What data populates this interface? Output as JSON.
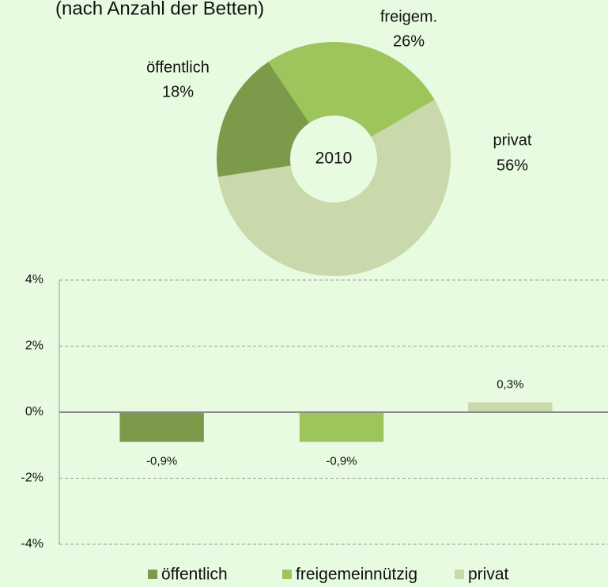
{
  "chart_data": [
    {
      "type": "donut",
      "subtitle": "(nach Anzahl der Betten)",
      "center_label": "2010",
      "categories": [
        "öffentlich",
        "freigem.",
        "privat"
      ],
      "values": [
        18,
        26,
        56
      ],
      "value_labels": [
        "18%",
        "26%",
        "56%"
      ],
      "colors": [
        "#7b9b4b",
        "#9ec45c",
        "#c9d9ab"
      ]
    },
    {
      "type": "bar",
      "categories": [
        "öffentlich",
        "freigemeinnützig",
        "privat"
      ],
      "values": [
        -0.9,
        -0.9,
        0.3
      ],
      "value_labels": [
        "-0,9%",
        "-0,9%",
        "0,3%"
      ],
      "colors": [
        "#7b9b4b",
        "#9ec45c",
        "#c9d9ab"
      ],
      "ylim": [
        -4,
        4
      ],
      "yticks": [
        {
          "value": -4,
          "label": "-4%"
        },
        {
          "value": -2,
          "label": "-2%"
        },
        {
          "value": 0,
          "label": "0%"
        },
        {
          "value": 2,
          "label": "2%"
        },
        {
          "value": 4,
          "label": "4%"
        }
      ],
      "grid": true,
      "legend": "bottom"
    }
  ]
}
